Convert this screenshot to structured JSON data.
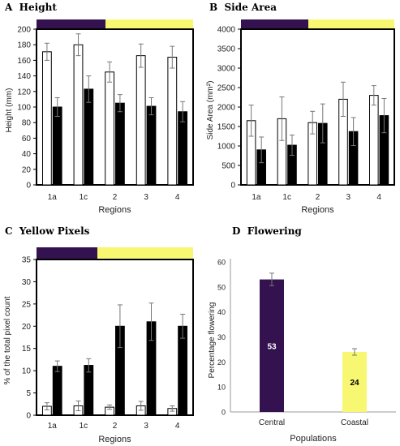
{
  "colors": {
    "central": "#34124f",
    "coastal": "#f7f772",
    "open_bar": "#ffffff",
    "filled_bar": "#000000",
    "axis": "#000000",
    "errorbar": "#777777"
  },
  "chart_data": [
    {
      "id": "A",
      "panel_letter": "A",
      "title": "Height",
      "type": "bar",
      "xlabel": "Regions",
      "ylabel": "Height (mm)",
      "ylim": [
        0,
        200
      ],
      "ytick_step": 20,
      "categories": [
        "1a",
        "1c",
        "2",
        "3",
        "4"
      ],
      "series": [
        {
          "style": "open",
          "values": [
            171,
            180,
            145,
            166,
            164
          ],
          "err": [
            11,
            14,
            13,
            15,
            14
          ]
        },
        {
          "style": "filled",
          "values": [
            100,
            123,
            105,
            101,
            94
          ],
          "err": [
            12,
            17,
            11,
            11,
            13
          ]
        }
      ],
      "top_band": [
        "central",
        "coastal"
      ]
    },
    {
      "id": "B",
      "panel_letter": "B",
      "title": "Side Area",
      "type": "bar",
      "xlabel": "Regions",
      "ylabel": "Side Area (mm²)",
      "ylim": [
        0,
        4000
      ],
      "ytick_step": 500,
      "categories": [
        "1a",
        "1c",
        "2",
        "3",
        "4"
      ],
      "series": [
        {
          "style": "open",
          "values": [
            1650,
            1700,
            1600,
            2200,
            2300
          ],
          "err": [
            400,
            560,
            290,
            440,
            250
          ]
        },
        {
          "style": "filled",
          "values": [
            900,
            1020,
            1580,
            1370,
            1780
          ],
          "err": [
            330,
            260,
            500,
            360,
            440
          ]
        }
      ],
      "top_band": [
        "central",
        "coastal"
      ]
    },
    {
      "id": "C",
      "panel_letter": "C",
      "title": "Yellow Pixels",
      "type": "bar",
      "xlabel": "Regions",
      "ylabel": "% of the total pixel count",
      "ylim": [
        0,
        35
      ],
      "ytick_step": 5,
      "categories": [
        "1a",
        "1c",
        "2",
        "3",
        "4"
      ],
      "series": [
        {
          "style": "open",
          "values": [
            2,
            2.1,
            1.8,
            2.1,
            1.5
          ],
          "err": [
            0.8,
            1.1,
            0.5,
            1.0,
            0.6
          ]
        },
        {
          "style": "filled",
          "values": [
            11,
            11.2,
            20,
            21,
            20
          ],
          "err": [
            1.2,
            1.5,
            4.8,
            4.2,
            2.7
          ]
        }
      ],
      "top_band": [
        "central",
        "coastal"
      ]
    },
    {
      "id": "D",
      "panel_letter": "D",
      "title": "Flowering",
      "type": "bar",
      "xlabel": "Populations",
      "ylabel": "Percentage flowering",
      "ylim": [
        0,
        60
      ],
      "ytick_step": 10,
      "categories": [
        "Central",
        "Coastal"
      ],
      "values": [
        53,
        24
      ],
      "err": [
        2.5,
        1.3
      ],
      "data_labels": [
        "53",
        "24"
      ]
    }
  ]
}
